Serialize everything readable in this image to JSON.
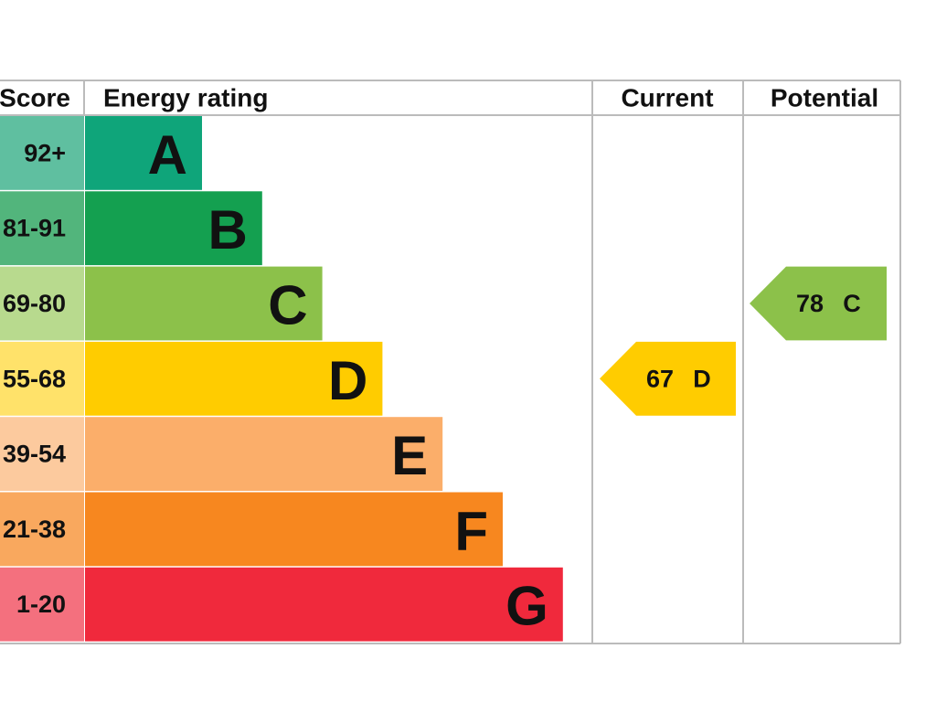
{
  "header": {
    "score": "Score",
    "rating": "Energy rating",
    "current": "Current",
    "potential": "Potential"
  },
  "bands": [
    {
      "score": "92+",
      "letter": "A",
      "color": "#0fa57a",
      "light": "#5fbfa0"
    },
    {
      "score": "81-91",
      "letter": "B",
      "color": "#14a050",
      "light": "#52b57c"
    },
    {
      "score": "69-80",
      "letter": "C",
      "color": "#8cc14a",
      "light": "#b8da8e"
    },
    {
      "score": "55-68",
      "letter": "D",
      "color": "#ffcc00",
      "light": "#ffe26a"
    },
    {
      "score": "39-54",
      "letter": "E",
      "color": "#fbae6a",
      "light": "#fcca9e"
    },
    {
      "score": "21-38",
      "letter": "F",
      "color": "#f7871f",
      "light": "#f9a85e"
    },
    {
      "score": "1-20",
      "letter": "G",
      "color": "#f0293c",
      "light": "#f4707e"
    }
  ],
  "current": {
    "score": 67,
    "rating": "D",
    "color": "#ffcc00"
  },
  "potential": {
    "score": 78,
    "rating": "C",
    "color": "#8cc14a"
  }
}
